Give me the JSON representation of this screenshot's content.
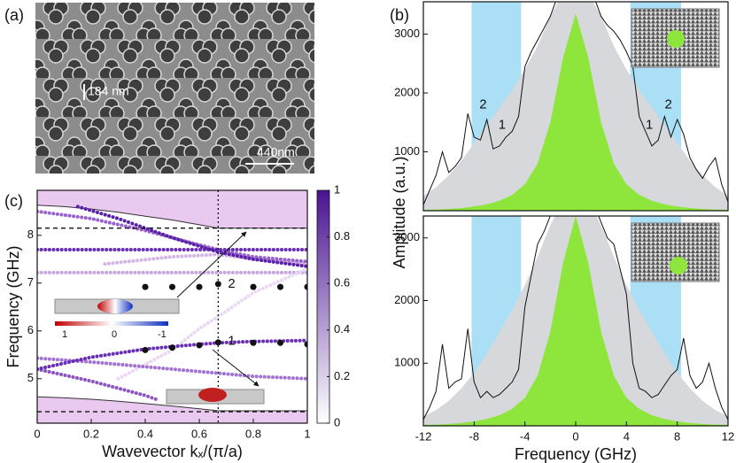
{
  "sem": {
    "panel": "(a)",
    "scale_labels": [
      "184 nm",
      "440nm"
    ]
  },
  "insets": {
    "field_scale": [
      "1",
      "0",
      "-1"
    ]
  },
  "chart_data": [
    {
      "type": "line",
      "panel": "(c)",
      "xlabel": "Wavevector kₓ/(π/a)",
      "ylabel": "Frequency (GHz)",
      "xlim": [
        0,
        1
      ],
      "ylim": [
        4.07,
        8.94
      ],
      "xticks": [
        0,
        0.2,
        0.4,
        0.6,
        0.8,
        1
      ],
      "yticks": [
        5,
        6,
        7,
        8
      ],
      "hlines": [
        8.15,
        4.31
      ],
      "vlines": [
        0.67
      ],
      "colorbar": {
        "lim": [
          0,
          1
        ],
        "ticks": [
          0,
          0.2,
          0.4,
          0.6,
          0.8,
          1
        ],
        "colors": [
          "#ffffff",
          "#4a1391"
        ]
      },
      "series": [
        {
          "style": "fill-above",
          "color": "#e9c9f0",
          "x": [
            0,
            0.1,
            0.2,
            0.3,
            0.4,
            0.5,
            0.6,
            0.67,
            1
          ],
          "values": [
            8.63,
            8.6,
            8.55,
            8.48,
            8.4,
            8.32,
            8.22,
            8.15,
            8.15
          ]
        },
        {
          "style": "fill-below",
          "color": "#e9c9f0",
          "x": [
            0,
            0.1,
            0.2,
            0.3,
            0.4,
            0.5,
            0.6,
            0.67,
            1
          ],
          "values": [
            4.62,
            4.6,
            4.57,
            4.53,
            4.48,
            4.43,
            4.37,
            4.33,
            4.33
          ]
        },
        {
          "style": "line",
          "color": "#c9a6e0",
          "x": [
            0,
            1
          ],
          "values": [
            7.22,
            7.22
          ]
        },
        {
          "style": "line",
          "color": "#ead9f2",
          "x": [
            0.3,
            0.5,
            0.6,
            0.67,
            0.8,
            1
          ],
          "values": [
            5.0,
            5.6,
            6.05,
            6.3,
            6.8,
            7.3
          ]
        },
        {
          "style": "line",
          "color": "#d4b6e6",
          "x": [
            0.25,
            0.5,
            0.67,
            0.8,
            1
          ],
          "values": [
            7.4,
            7.55,
            7.6,
            7.5,
            7.4
          ]
        },
        {
          "style": "line",
          "color": "#9a62cc",
          "x": [
            0,
            0.2,
            0.4,
            0.6,
            0.67,
            0.8,
            1
          ],
          "values": [
            8.5,
            8.35,
            8.1,
            7.8,
            7.7,
            7.55,
            7.45
          ]
        },
        {
          "style": "line",
          "color": "#6a2fb5",
          "x": [
            0,
            1
          ],
          "values": [
            7.7,
            7.7
          ]
        },
        {
          "style": "line",
          "color": "#5a22a8",
          "x": [
            0.15,
            0.3,
            0.5,
            0.67,
            0.8,
            1
          ],
          "values": [
            8.6,
            8.35,
            7.95,
            7.65,
            7.5,
            7.35
          ]
        },
        {
          "style": "line",
          "color": "#a273d2",
          "x": [
            0,
            0.2,
            0.4,
            0.6,
            0.8,
            1
          ],
          "values": [
            5.43,
            5.35,
            5.25,
            5.15,
            5.05,
            5.0
          ]
        },
        {
          "style": "line",
          "color": "#8e55c6",
          "x": [
            0,
            0.2,
            0.4,
            0.45
          ],
          "values": [
            5.2,
            4.95,
            4.65,
            4.55
          ]
        },
        {
          "style": "line",
          "color": "#6a2fb5",
          "x": [
            0,
            0.2,
            0.4,
            0.6,
            0.67,
            0.8,
            1
          ],
          "values": [
            5.2,
            5.45,
            5.62,
            5.72,
            5.75,
            5.78,
            5.8
          ]
        },
        {
          "style": "dots",
          "color": "#111111",
          "x": [
            0.4,
            0.5,
            0.6,
            0.67,
            0.8,
            0.9,
            1
          ],
          "values": [
            6.92,
            6.92,
            6.92,
            6.98,
            6.92,
            6.92,
            6.92
          ]
        },
        {
          "style": "dots",
          "color": "#111111",
          "x": [
            0.4,
            0.5,
            0.6,
            0.67,
            0.8,
            0.9,
            1
          ],
          "values": [
            5.6,
            5.65,
            5.7,
            5.76,
            5.75,
            5.75,
            5.72
          ]
        }
      ],
      "annotations": [
        {
          "text": "2",
          "x": 0.72,
          "y": 6.98
        },
        {
          "text": "1",
          "x": 0.72,
          "y": 5.78
        }
      ]
    },
    {
      "type": "line",
      "panel": "(b)",
      "ylabel": "Amplitude (a.u.)",
      "xlim": [
        -12,
        12
      ],
      "ylim": [
        0,
        3550
      ],
      "yticks": [
        1000,
        2000,
        3000
      ],
      "shaded_ranges": [
        [
          -8.2,
          -4.3
        ],
        [
          4.3,
          8.3
        ]
      ],
      "shade_color": "#aadff6",
      "series": [
        {
          "style": "area",
          "color": "#d6d8dc",
          "x": [
            -12,
            -11,
            -10,
            -9,
            -8,
            -7,
            -6,
            -5,
            -4,
            -3,
            -2,
            -1,
            0,
            1,
            2,
            3,
            4,
            5,
            6,
            7,
            8,
            9,
            10,
            11,
            12
          ],
          "values": [
            250,
            400,
            600,
            850,
            1150,
            1450,
            1750,
            2050,
            2400,
            2800,
            3300,
            3700,
            3800,
            3700,
            3300,
            2800,
            2400,
            2050,
            1750,
            1450,
            1150,
            850,
            600,
            400,
            250
          ]
        },
        {
          "style": "area",
          "color": "#8ee63c",
          "x": [
            -12,
            -11,
            -10,
            -9,
            -8,
            -7,
            -6,
            -5,
            -4,
            -3,
            -2,
            -1,
            0,
            1,
            2,
            3,
            4,
            5,
            6,
            7,
            8,
            9,
            10,
            11,
            12
          ],
          "values": [
            15,
            20,
            30,
            45,
            70,
            110,
            170,
            270,
            450,
            800,
            1500,
            2600,
            3350,
            2600,
            1500,
            800,
            450,
            270,
            170,
            110,
            70,
            45,
            30,
            20,
            15
          ]
        },
        {
          "style": "line",
          "color": "#111111",
          "x": [
            -12,
            -11.5,
            -11,
            -10.5,
            -10,
            -9.5,
            -9,
            -8.5,
            -8,
            -7.5,
            -7,
            -6.5,
            -6,
            -5.5,
            -5,
            -4.5,
            -4,
            -3.5,
            -3,
            -2.5,
            -2,
            -1.5,
            -1,
            -0.5,
            0,
            0.5,
            1,
            1.5,
            2,
            2.5,
            3,
            3.5,
            4,
            4.5,
            5,
            5.5,
            6,
            6.5,
            7,
            7.5,
            8,
            8.5,
            9,
            9.5,
            10,
            10.5,
            11,
            11.5,
            12
          ],
          "values": [
            100,
            350,
            600,
            1000,
            650,
            750,
            900,
            1650,
            1250,
            1200,
            1550,
            1050,
            1100,
            1250,
            1350,
            1600,
            2450,
            2700,
            2900,
            3100,
            3300,
            3600,
            3700,
            3700,
            3700,
            3700,
            3700,
            3600,
            3300,
            3150,
            3050,
            2900,
            2700,
            2450,
            1600,
            1350,
            1100,
            1200,
            1600,
            1250,
            1550,
            1300,
            900,
            700,
            550,
            750,
            900,
            450,
            150
          ]
        }
      ],
      "annotations": [
        {
          "text": "2",
          "x": -7.3,
          "y": 1800
        },
        {
          "text": "1",
          "x": -5.8,
          "y": 1450
        },
        {
          "text": "1",
          "x": 5.8,
          "y": 1450
        },
        {
          "text": "2",
          "x": 7.3,
          "y": 1800
        }
      ]
    },
    {
      "type": "line",
      "xlabel": "Frequency (GHz)",
      "xlim": [
        -12,
        12
      ],
      "ylim": [
        0,
        3350
      ],
      "xticks": [
        -12,
        -8,
        -4,
        0,
        4,
        8,
        12
      ],
      "yticks": [
        1000,
        2000,
        3000
      ],
      "shaded_ranges": [
        [
          -8.2,
          -4.3
        ],
        [
          4.3,
          8.3
        ]
      ],
      "shade_color": "#aadff6",
      "series": [
        {
          "style": "area",
          "color": "#d6d8dc",
          "x": [
            -12,
            -11,
            -10,
            -9,
            -8,
            -7,
            -6,
            -5,
            -4,
            -3,
            -2,
            -1,
            0,
            1,
            2,
            3,
            4,
            5,
            6,
            7,
            8,
            9,
            10,
            11,
            12
          ],
          "values": [
            150,
            250,
            400,
            600,
            850,
            1150,
            1500,
            1850,
            2250,
            2700,
            3200,
            3600,
            3700,
            3600,
            3200,
            2700,
            2250,
            1850,
            1500,
            1150,
            850,
            600,
            400,
            250,
            150
          ]
        },
        {
          "style": "area",
          "color": "#8ee63c",
          "x": [
            -12,
            -11,
            -10,
            -9,
            -8,
            -7,
            -6,
            -5,
            -4,
            -3,
            -2,
            -1,
            0,
            1,
            2,
            3,
            4,
            5,
            6,
            7,
            8,
            9,
            10,
            11,
            12
          ],
          "values": [
            15,
            20,
            30,
            45,
            70,
            110,
            170,
            270,
            450,
            800,
            1500,
            2600,
            3350,
            2600,
            1500,
            800,
            450,
            270,
            170,
            110,
            70,
            45,
            30,
            20,
            15
          ]
        },
        {
          "style": "line",
          "color": "#111111",
          "x": [
            -12,
            -11.5,
            -11,
            -10.5,
            -10,
            -9.5,
            -9,
            -8.5,
            -8,
            -7.5,
            -7,
            -6.5,
            -6,
            -5.5,
            -5,
            -4.5,
            -4,
            -3.5,
            -3,
            -2.5,
            -2,
            -1.5,
            -1,
            -0.5,
            0,
            0.5,
            1,
            1.5,
            2,
            2.5,
            3,
            3.5,
            4,
            4.5,
            5,
            5.5,
            6,
            6.5,
            7,
            7.5,
            8,
            8.5,
            9,
            9.5,
            10,
            10.5,
            11,
            11.5,
            12
          ],
          "values": [
            100,
            300,
            550,
            1300,
            600,
            700,
            750,
            1550,
            700,
            450,
            550,
            450,
            500,
            600,
            700,
            900,
            1900,
            2400,
            2900,
            3100,
            3350,
            3500,
            3500,
            3500,
            3500,
            3500,
            3500,
            3500,
            3250,
            3000,
            2900,
            2500,
            2100,
            1000,
            600,
            550,
            450,
            500,
            650,
            800,
            900,
            1400,
            800,
            600,
            700,
            1000,
            600,
            300,
            100
          ]
        }
      ]
    }
  ]
}
